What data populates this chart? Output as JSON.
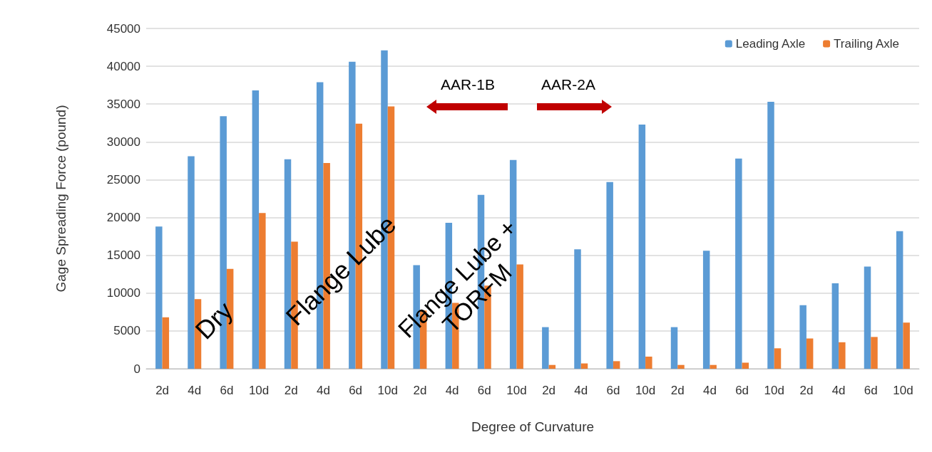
{
  "chart_data": {
    "type": "bar",
    "xlabel": "Degree of Curvature",
    "ylabel": "Gage Spreading Force (pound)",
    "categories": [
      "2d",
      "4d",
      "6d",
      "10d",
      "2d",
      "4d",
      "6d",
      "10d",
      "2d",
      "4d",
      "6d",
      "10d",
      "2d",
      "4d",
      "6d",
      "10d",
      "2d",
      "4d",
      "6d",
      "10d",
      "2d",
      "4d",
      "6d",
      "10d"
    ],
    "series": [
      {
        "name": "Leading Axle",
        "color": "#5b9bd5",
        "values": [
          18800,
          28100,
          33400,
          36800,
          27700,
          37900,
          40600,
          42100,
          13700,
          19300,
          23000,
          27600,
          5500,
          15800,
          24700,
          32300,
          5500,
          15600,
          27800,
          35300,
          8400,
          11300,
          13500,
          18200
        ]
      },
      {
        "name": "Trailing Axle",
        "color": "#ed7d31",
        "values": [
          6800,
          9200,
          13200,
          20600,
          16800,
          27200,
          32400,
          34700,
          7700,
          8700,
          11000,
          13800,
          500,
          700,
          1000,
          1600,
          500,
          500,
          800,
          2700,
          4000,
          3500,
          4200,
          6100
        ]
      }
    ],
    "ylim": [
      0,
      45000
    ],
    "yticks": [
      0,
      5000,
      10000,
      15000,
      20000,
      25000,
      30000,
      35000,
      40000,
      45000
    ],
    "grid": "y",
    "legend": "top right",
    "annotations": [
      "Dry",
      "Flange Lube",
      "Flange Lube +\nTORFM",
      "AAR-1B",
      "AAR-2A"
    ]
  }
}
